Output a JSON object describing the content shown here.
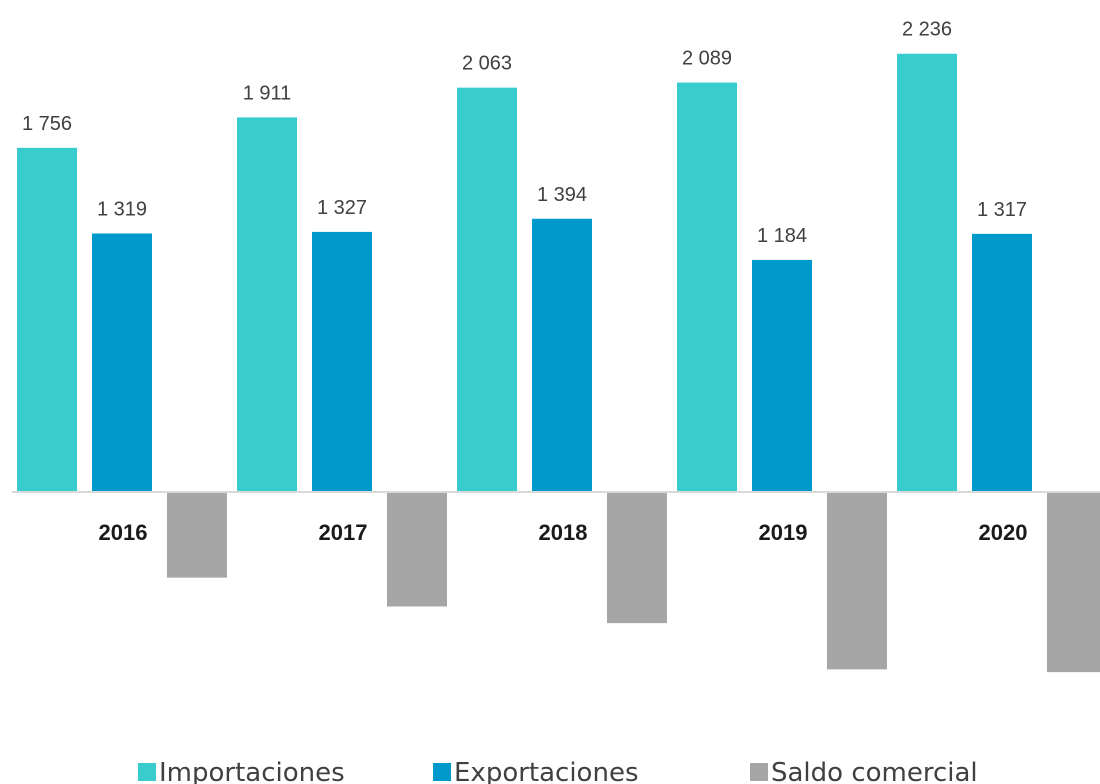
{
  "chart_data": {
    "type": "bar",
    "categories": [
      "2016",
      "2017",
      "2018",
      "2019",
      "2020"
    ],
    "series": [
      {
        "name": "Importaciones",
        "color": "#38cccc",
        "values": [
          1756,
          1911,
          2063,
          2089,
          2236
        ],
        "value_labels": [
          "1 756",
          "1 911",
          "2 063",
          "2 089",
          "2 236"
        ]
      },
      {
        "name": "Exportaciones",
        "color": "#0099cc",
        "values": [
          1319,
          1327,
          1394,
          1184,
          1317
        ],
        "value_labels": [
          "1 319",
          "1 327",
          "1 394",
          "1 184",
          "1 317"
        ]
      },
      {
        "name": "Saldo comercial",
        "color": "#a6a6a6",
        "values": [
          -437,
          -584,
          -669,
          -905,
          -919
        ]
      }
    ],
    "ylim": [
      -1000,
      2500
    ]
  }
}
